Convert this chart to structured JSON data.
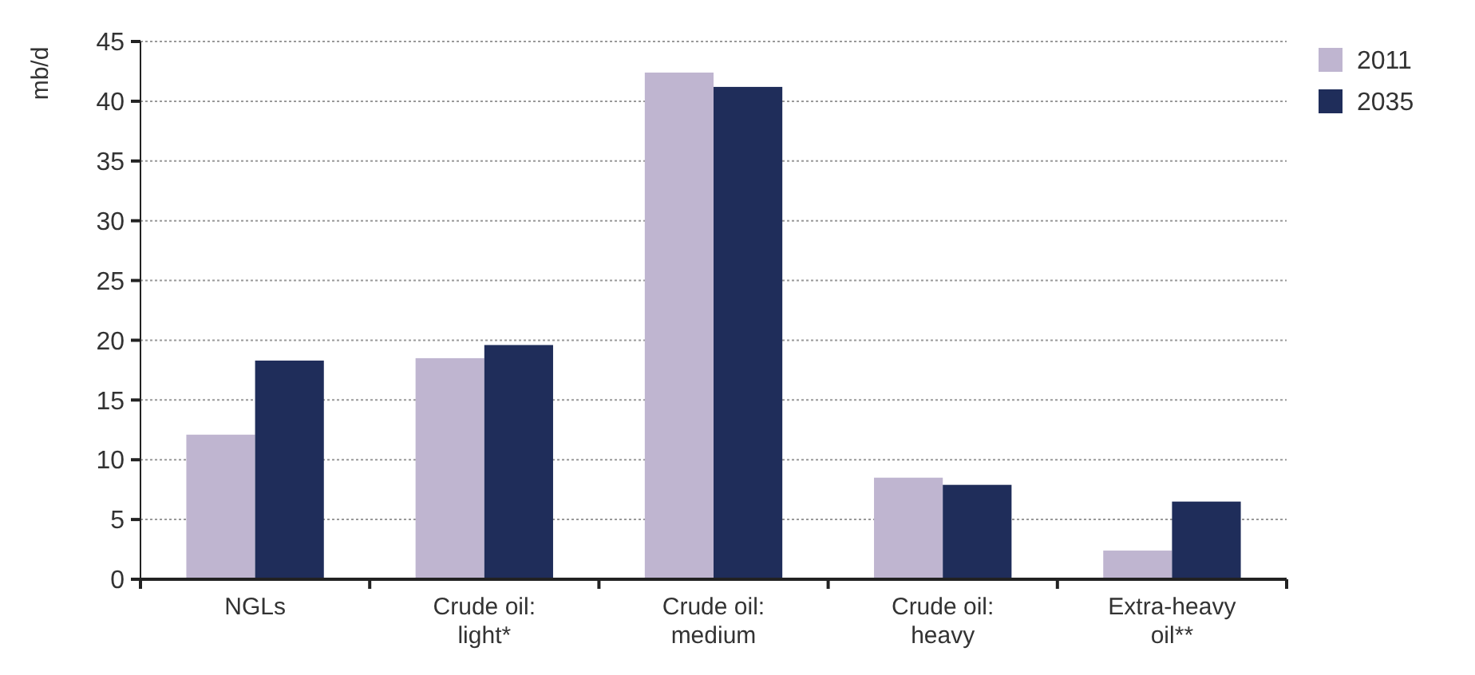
{
  "chart_data": {
    "type": "bar",
    "ylabel": "mb/d",
    "categories": [
      "NGLs",
      "Crude oil: light*",
      "Crude oil: medium",
      "Crude oil: heavy",
      "Extra-heavy oil**"
    ],
    "series": [
      {
        "name": "2011",
        "color": "#bfb5d0",
        "values": [
          12.1,
          18.5,
          42.4,
          8.5,
          2.4
        ]
      },
      {
        "name": "2035",
        "color": "#1f2d5a",
        "values": [
          18.3,
          19.6,
          41.2,
          7.9,
          6.5
        ]
      }
    ],
    "ylim": [
      0,
      45
    ],
    "yticks": [
      0,
      5,
      10,
      15,
      20,
      25,
      30,
      35,
      40,
      45
    ],
    "grid": "y",
    "legend": "top right"
  }
}
